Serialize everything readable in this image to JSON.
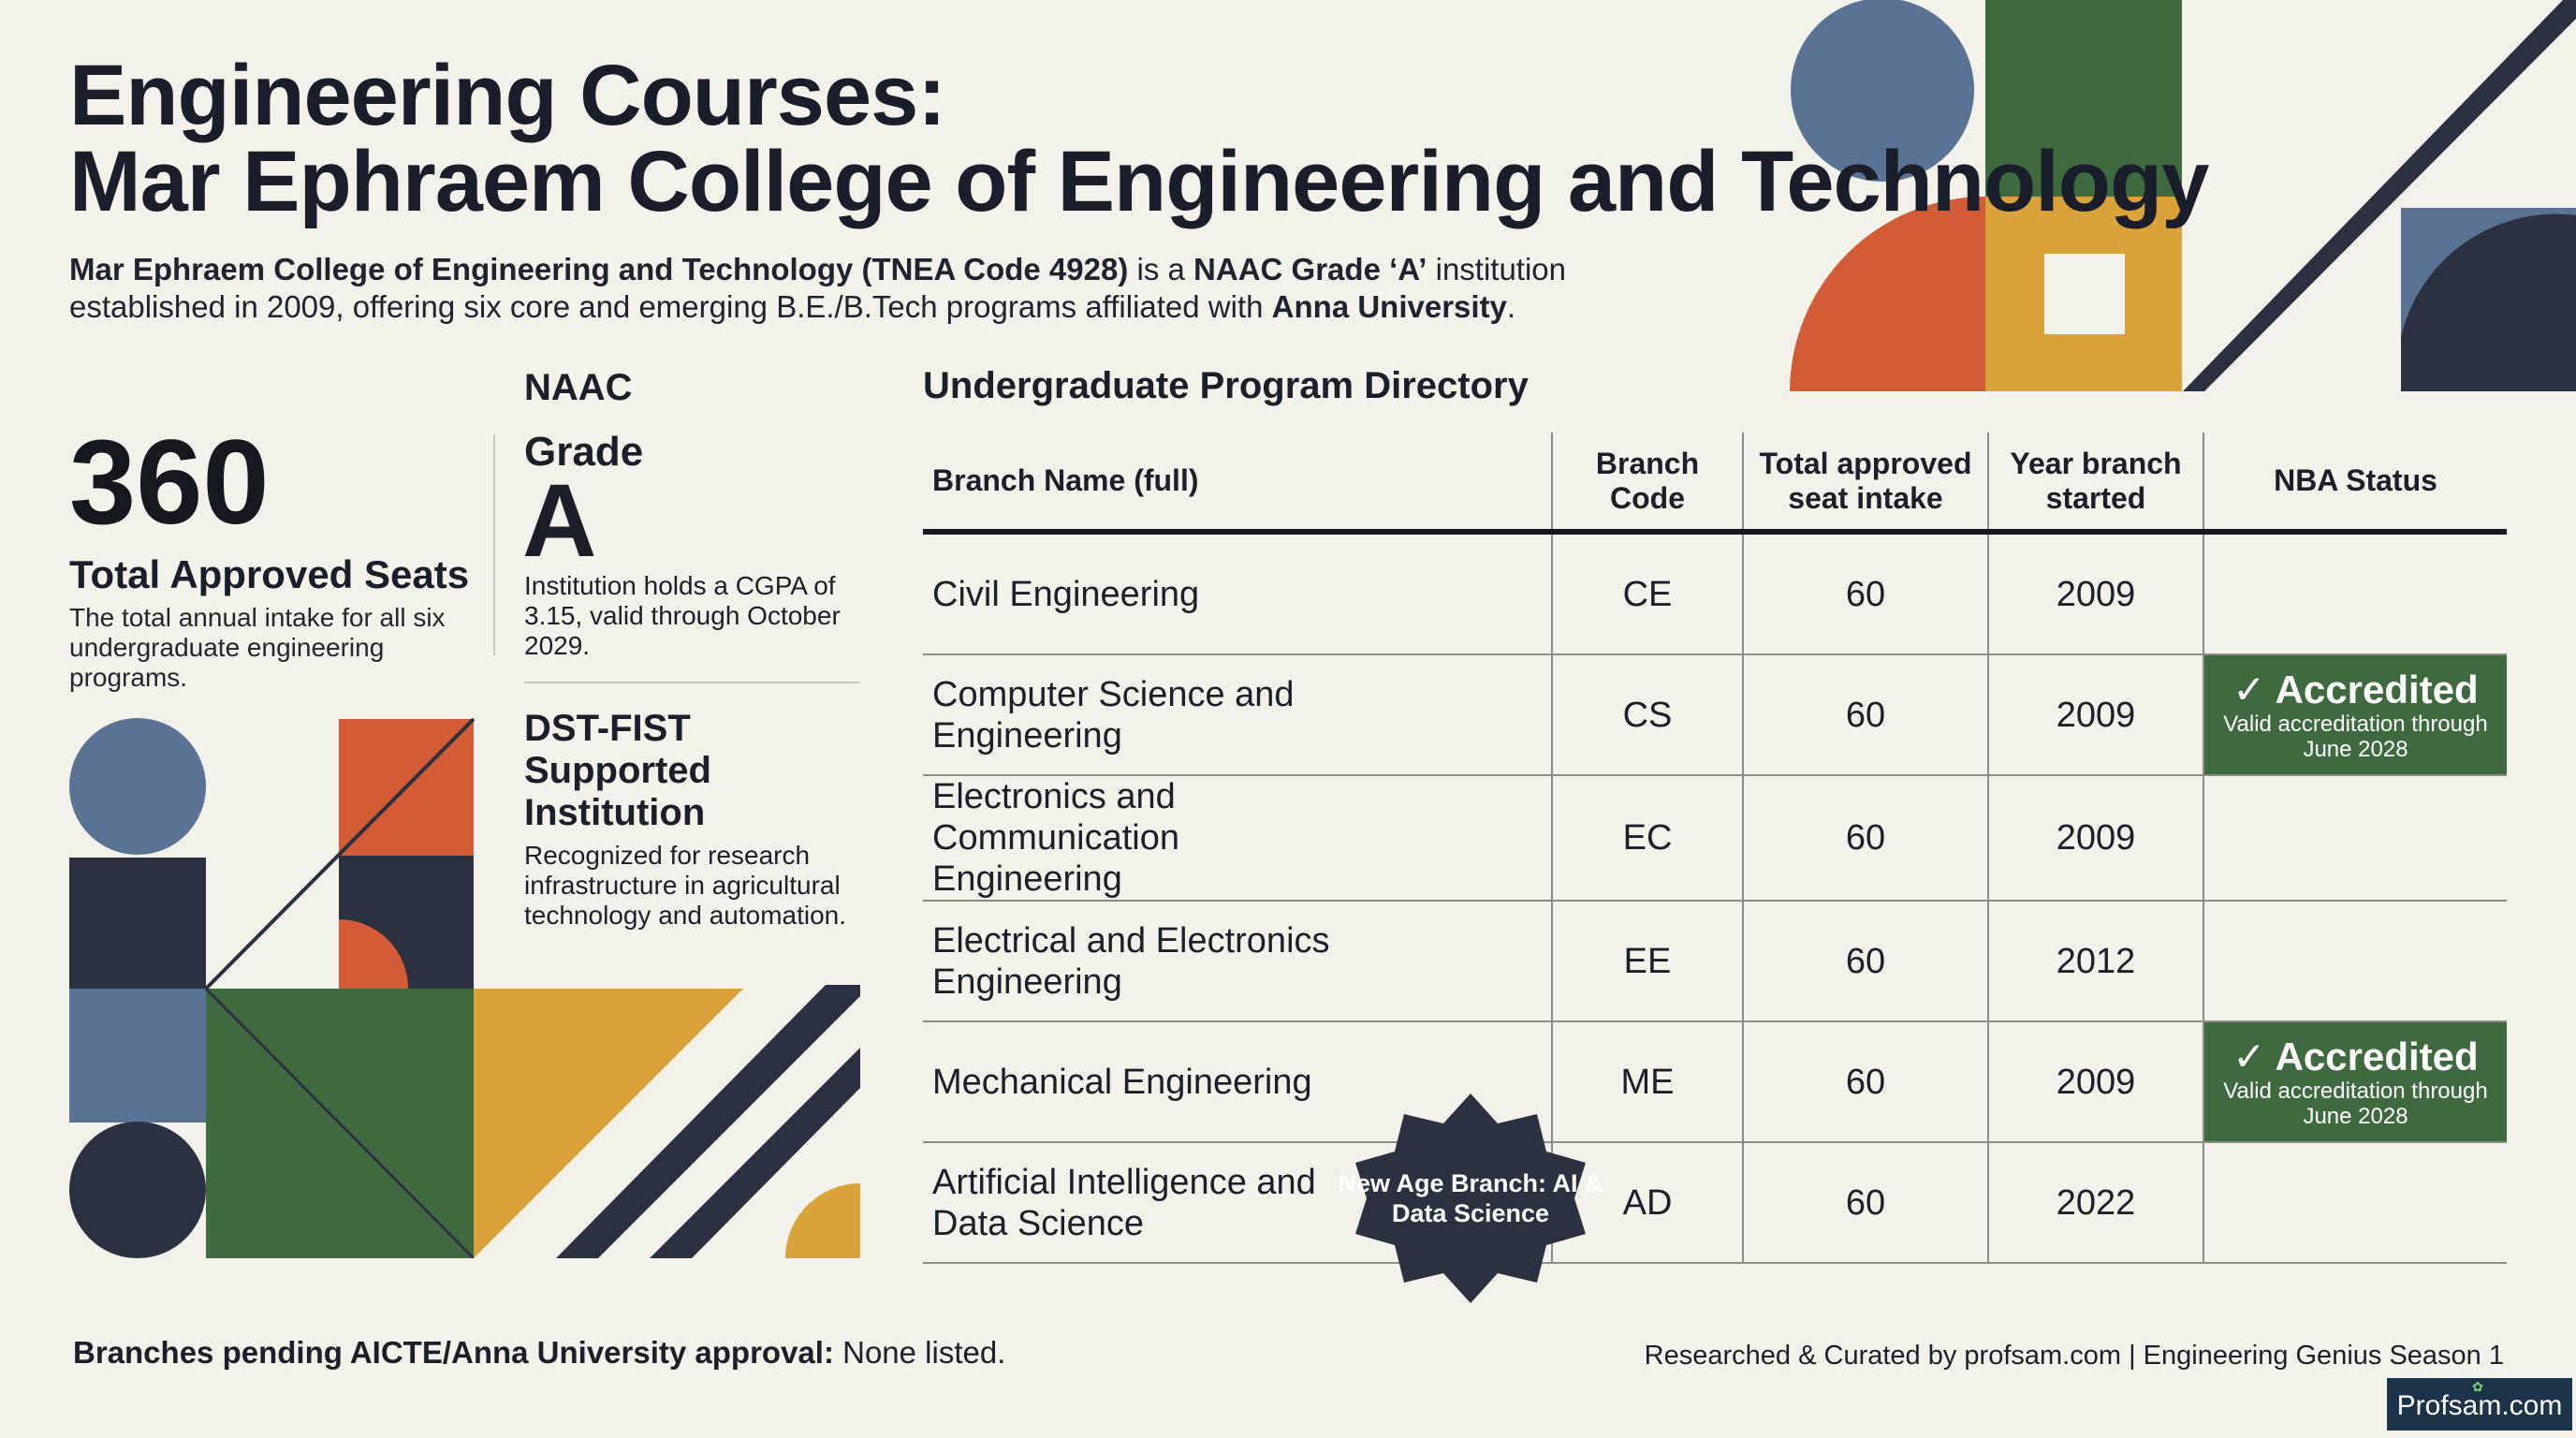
{
  "header": {
    "title_line1": "Engineering Courses:",
    "title_line2": "Mar Ephraem College of Engineering and Technology",
    "subtitle": {
      "part1": "Mar Ephraem College of Engineering and Technology (TNEA Code 4928)",
      "part2": " is a ",
      "part3": "NAAC Grade ‘A’",
      "part4": " institution established in 2009, offering six core and emerging B.E./B.Tech programs affiliated with ",
      "part5": "Anna University",
      "part6": "."
    }
  },
  "stats": {
    "seats": {
      "number": "360",
      "label": "Total Approved Seats",
      "description": "The total annual intake for all six undergraduate engineering programs."
    },
    "naac": {
      "label": "NAAC",
      "grade_word": "Grade",
      "grade_letter": "A",
      "description": "Institution holds a CGPA of 3.15, valid through October 2029."
    },
    "dst": {
      "title": "DST-FIST Supported Institution",
      "description": "Recognized for research infrastructure in agricultural technology and automation."
    }
  },
  "directory": {
    "heading": "Undergraduate Program Directory",
    "columns": {
      "branch": "Branch Name (full)",
      "code": "Branch Code",
      "intake": "Total approved seat intake",
      "year": "Year branch started",
      "nba": "NBA Status"
    },
    "rows": [
      {
        "branch": "Civil Engineering",
        "code": "CE",
        "intake": "60",
        "year": "2009",
        "nba": ""
      },
      {
        "branch": "Computer Science and Engineering",
        "code": "CS",
        "intake": "60",
        "year": "2009",
        "nba": "✓ Accredited",
        "nba_note": "Valid accreditation through June 2028"
      },
      {
        "branch": "Electronics and Communication Engineering",
        "code": "EC",
        "intake": "60",
        "year": "2009",
        "nba": ""
      },
      {
        "branch": "Electrical and Electronics Engineering",
        "code": "EE",
        "intake": "60",
        "year": "2012",
        "nba": ""
      },
      {
        "branch": "Mechanical Engineering",
        "code": "ME",
        "intake": "60",
        "year": "2009",
        "nba": "✓ Accredited",
        "nba_note": "Valid accreditation through June 2028"
      },
      {
        "branch": "Artificial Intelligence and Data Science",
        "code": "AD",
        "intake": "60",
        "year": "2022",
        "nba": ""
      }
    ],
    "new_age_badge": "New Age Branch: AI & Data Science"
  },
  "footer": {
    "pending_label": "Branches pending AICTE/Anna University approval:",
    "pending_value": " None listed.",
    "credit": "Researched & Curated by profsam.com | Engineering Genius Season 1",
    "brand": "Profsam.com"
  },
  "colors": {
    "blue": "#5a7394",
    "navy": "#2b3140",
    "green": "#3f6a3f",
    "orange": "#d35c36",
    "mustard": "#d9a33a",
    "background": "#f2f1ea"
  }
}
